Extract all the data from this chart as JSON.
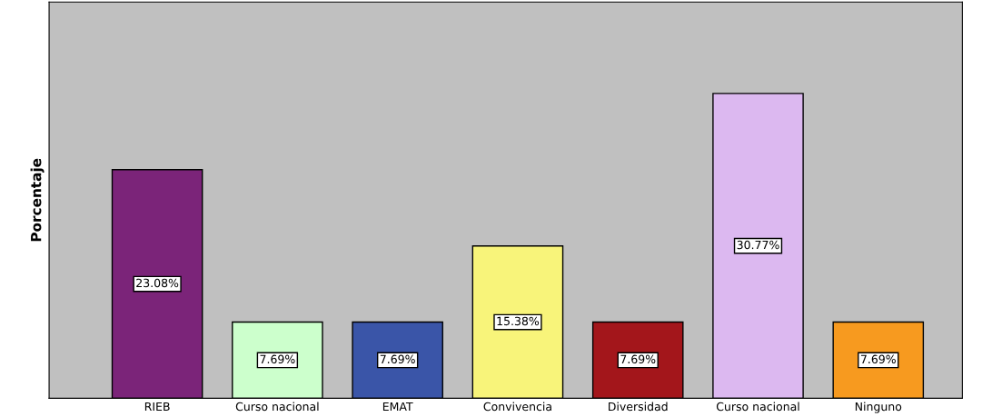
{
  "chart_data": {
    "type": "bar",
    "ylabel": "Porcentaje",
    "categories": [
      "RIEB",
      "Curso nacional",
      "EMAT",
      "Convivencia",
      "Diversidad",
      "Curso nacional",
      "Ninguno"
    ],
    "values": [
      23.08,
      7.69,
      7.69,
      15.38,
      7.69,
      30.77,
      7.69
    ],
    "colors": [
      "#7b2479",
      "#ccffcc",
      "#3a55a8",
      "#f8f47a",
      "#a3161b",
      "#dcb8f0",
      "#f79a1f"
    ],
    "value_labels": [
      "23.08%",
      "7.69%",
      "7.69%",
      "15.38%",
      "7.69%",
      "30.77%",
      "7.69%"
    ],
    "tick_labels": "x",
    "grid": false
  }
}
